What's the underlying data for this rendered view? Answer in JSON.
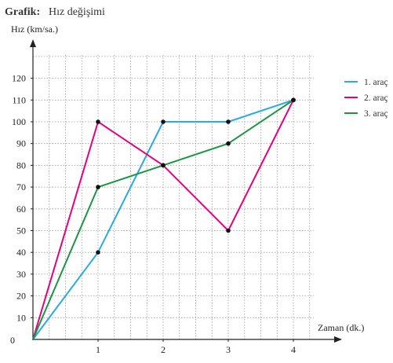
{
  "title_prefix": "Grafik:",
  "title_text": "Hız değişimi",
  "chart_data": {
    "type": "line",
    "xlabel": "Zaman (dk.)",
    "ylabel": "Hız (km/sa.)",
    "x_ticks": [
      0,
      1,
      2,
      3,
      4
    ],
    "y_ticks": [
      10,
      20,
      30,
      40,
      50,
      60,
      70,
      80,
      90,
      100,
      110,
      120
    ],
    "origin_label": "0",
    "xlim": [
      0,
      4.8
    ],
    "ylim": [
      0,
      130
    ],
    "grid": true,
    "legend_position": "right",
    "x": [
      0,
      1,
      2,
      3,
      4
    ],
    "series": [
      {
        "name": "1. araç",
        "color": "#29abe2",
        "values": [
          0,
          40,
          100,
          100,
          110
        ]
      },
      {
        "name": "2. araç",
        "color": "#e6007e",
        "values": [
          0,
          100,
          80,
          50,
          110
        ]
      },
      {
        "name": "3. araç",
        "color": "#1a9641",
        "values": [
          0,
          70,
          80,
          90,
          110
        ]
      }
    ]
  }
}
